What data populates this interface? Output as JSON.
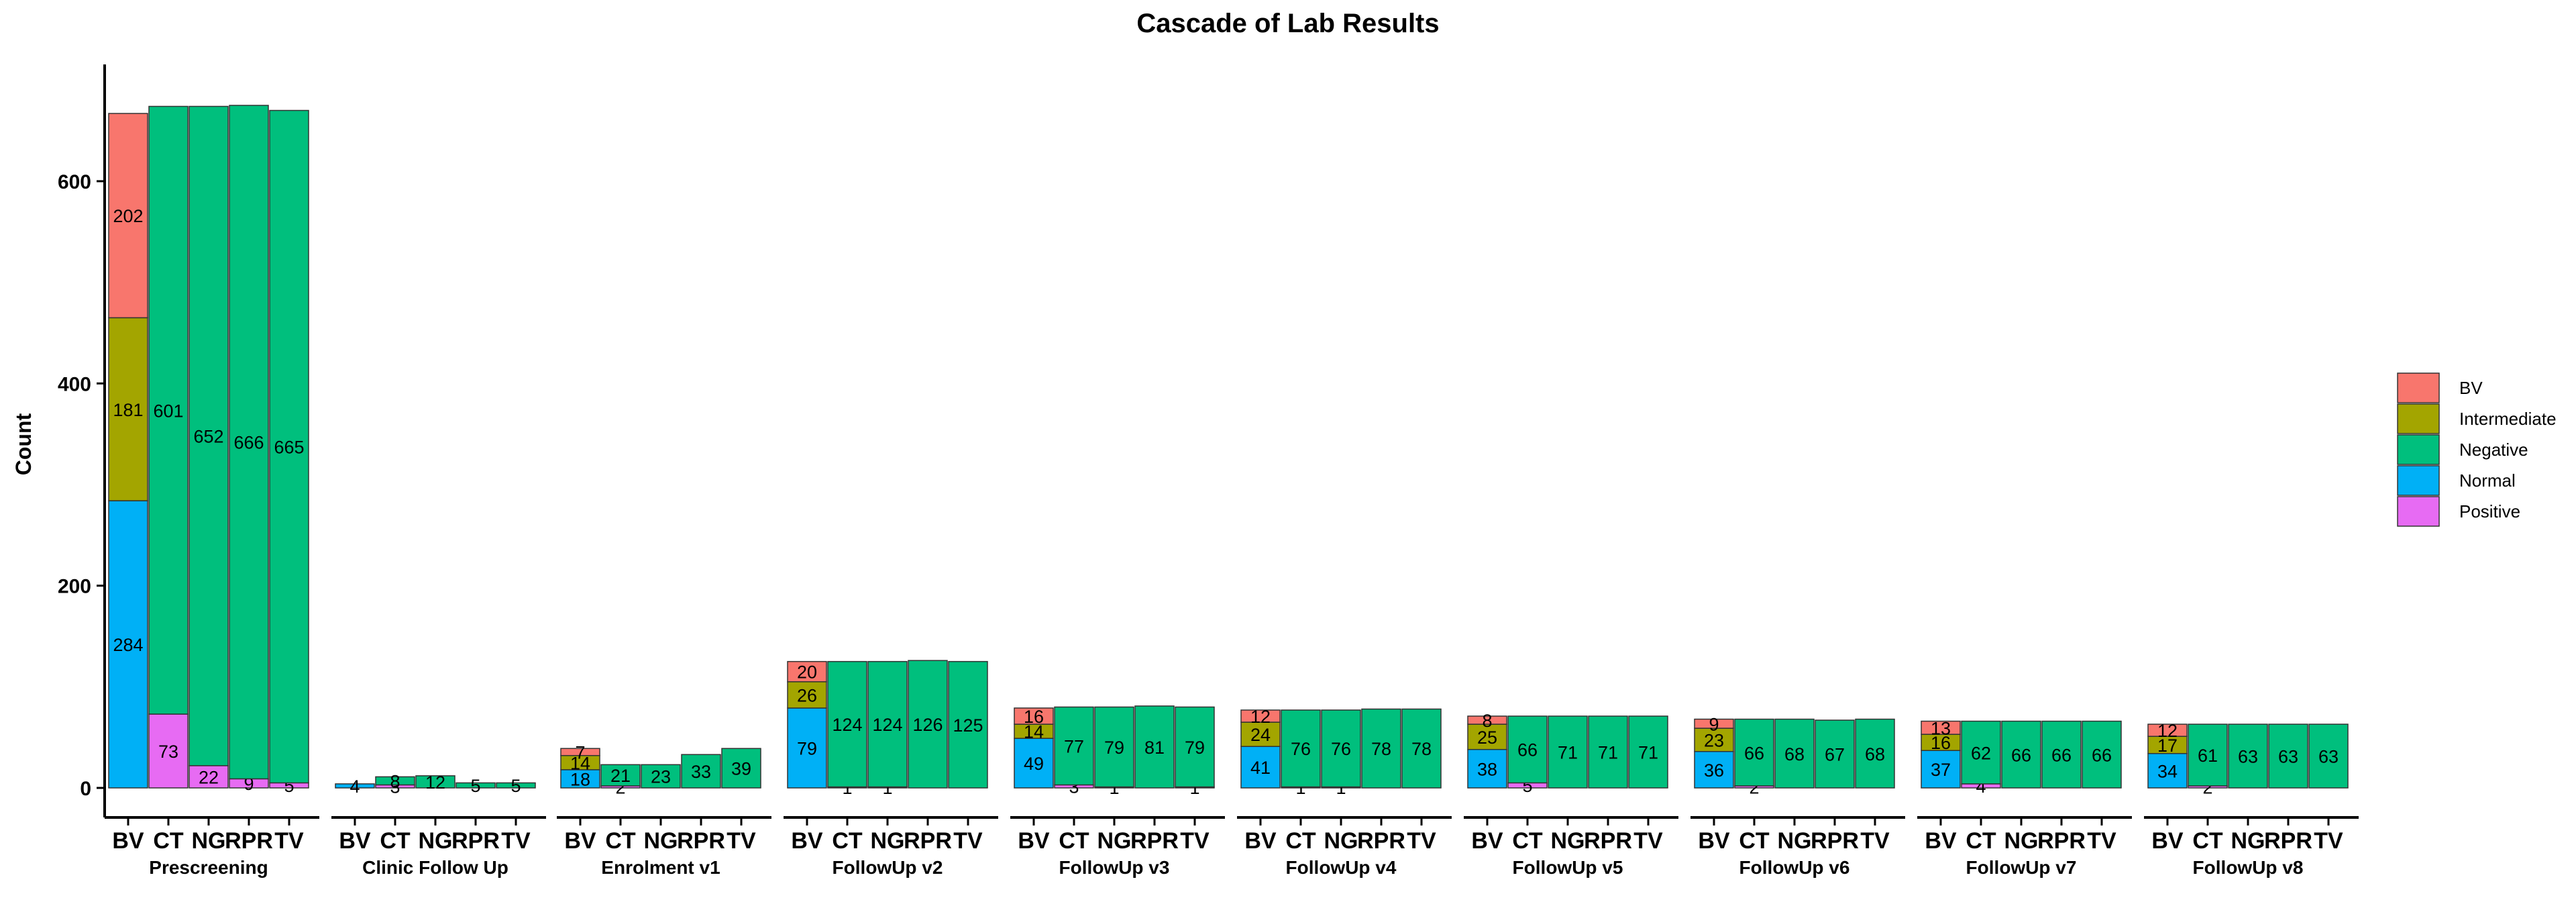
{
  "chart_data": {
    "type": "bar",
    "stacked": true,
    "title": "Cascade of Lab Results",
    "ylabel": "Count",
    "xlabel": "",
    "ylim": [
      0,
      710
    ],
    "yticks": [
      0,
      200,
      400,
      600
    ],
    "tests": [
      "BV",
      "CT",
      "NG",
      "RPR",
      "TV"
    ],
    "test_labels": [
      "BV",
      "CT",
      "NG",
      "RPR",
      "TV"
    ],
    "groups": [
      {
        "name": "Prescreening",
        "bars": [
          {
            "BV": 202,
            "Intermediate": 181,
            "Normal": 284
          },
          {
            "Negative": 601,
            "Positive": 73
          },
          {
            "Negative": 652,
            "Positive": 22
          },
          {
            "Negative": 666,
            "Positive": 9
          },
          {
            "Negative": 665,
            "Positive": 5
          }
        ]
      },
      {
        "name": "Clinic Follow Up",
        "bars": [
          {
            "Normal": 4
          },
          {
            "Negative": 8,
            "Positive": 3
          },
          {
            "Negative": 12
          },
          {
            "Negative": 5
          },
          {
            "Negative": 5
          }
        ]
      },
      {
        "name": "Enrolment v1",
        "bars": [
          {
            "BV": 7,
            "Intermediate": 14,
            "Normal": 18
          },
          {
            "Negative": 21,
            "Positive": 2
          },
          {
            "Negative": 23
          },
          {
            "Negative": 33
          },
          {
            "Negative": 39
          }
        ]
      },
      {
        "name": "FollowUp v2",
        "bars": [
          {
            "BV": 20,
            "Intermediate": 26,
            "Normal": 79
          },
          {
            "Negative": 124,
            "Positive": 1
          },
          {
            "Negative": 124,
            "Positive": 1
          },
          {
            "Negative": 126
          },
          {
            "Negative": 125
          }
        ]
      },
      {
        "name": "FollowUp v3",
        "bars": [
          {
            "BV": 16,
            "Intermediate": 14,
            "Normal": 49
          },
          {
            "Negative": 77,
            "Positive": 3
          },
          {
            "Negative": 79,
            "Positive": 1
          },
          {
            "Negative": 81
          },
          {
            "Negative": 79,
            "Positive": 1
          }
        ]
      },
      {
        "name": "FollowUp v4",
        "bars": [
          {
            "BV": 12,
            "Intermediate": 24,
            "Normal": 41
          },
          {
            "Negative": 76,
            "Positive": 1
          },
          {
            "Negative": 76,
            "Positive": 1
          },
          {
            "Negative": 78
          },
          {
            "Negative": 78
          }
        ]
      },
      {
        "name": "FollowUp v5",
        "bars": [
          {
            "BV": 8,
            "Intermediate": 25,
            "Normal": 38
          },
          {
            "Negative": 66,
            "Positive": 5
          },
          {
            "Negative": 71
          },
          {
            "Negative": 71
          },
          {
            "Negative": 71
          }
        ]
      },
      {
        "name": "FollowUp v6",
        "bars": [
          {
            "BV": 9,
            "Intermediate": 23,
            "Normal": 36
          },
          {
            "Negative": 66,
            "Positive": 2
          },
          {
            "Negative": 68
          },
          {
            "Negative": 67
          },
          {
            "Negative": 68
          }
        ]
      },
      {
        "name": "FollowUp v7",
        "bars": [
          {
            "BV": 13,
            "Intermediate": 16,
            "Normal": 37
          },
          {
            "Negative": 62,
            "Positive": 4
          },
          {
            "Negative": 66
          },
          {
            "Negative": 66
          },
          {
            "Negative": 66
          }
        ]
      },
      {
        "name": "FollowUp v8",
        "bars": [
          {
            "BV": 12,
            "Intermediate": 17,
            "Normal": 34
          },
          {
            "Negative": 61,
            "Positive": 2
          },
          {
            "Negative": 63
          },
          {
            "Negative": 63
          },
          {
            "Negative": 63
          }
        ]
      }
    ],
    "stack_order": [
      "Normal",
      "Positive",
      "Intermediate",
      "Negative",
      "BV"
    ],
    "legend": {
      "placement": "right",
      "entries": [
        {
          "name": "BV",
          "color": "#F8766D"
        },
        {
          "name": "Intermediate",
          "color": "#A3A500"
        },
        {
          "name": "Negative",
          "color": "#00BF7D"
        },
        {
          "name": "Normal",
          "color": "#00B0F6"
        },
        {
          "name": "Positive",
          "color": "#E76BF3"
        }
      ]
    },
    "grid": false
  }
}
